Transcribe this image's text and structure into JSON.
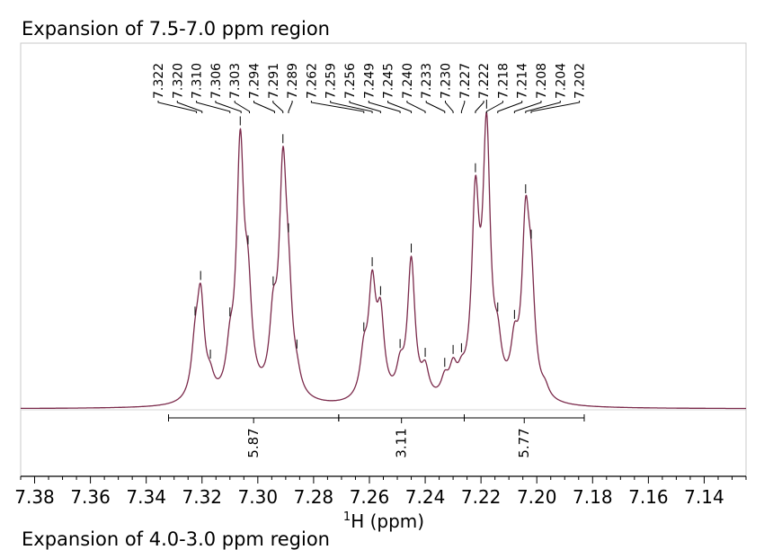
{
  "chart_data": {
    "type": "line",
    "title": "Expansion of 7.5-7.0 ppm region",
    "next_title_fragment": "Expansion of 4.0-3.0 ppm region",
    "xlabel_sup": "1",
    "xlabel_rest": "H (ppm)",
    "xlim": [
      7.385,
      7.125
    ],
    "x_reversed": true,
    "x_ticks": [
      "7.38",
      "7.36",
      "7.34",
      "7.32",
      "7.30",
      "7.28",
      "7.26",
      "7.24",
      "7.22",
      "7.20",
      "7.18",
      "7.16",
      "7.14"
    ],
    "x_tick_values": [
      7.38,
      7.36,
      7.34,
      7.32,
      7.3,
      7.28,
      7.26,
      7.24,
      7.22,
      7.2,
      7.18,
      7.16,
      7.14
    ],
    "line_color": "#7b2a4b",
    "peak_labels": [
      "7.322",
      "7.320",
      "7.310",
      "7.306",
      "7.303",
      "7.294",
      "7.291",
      "7.289",
      "7.262",
      "7.259",
      "7.256",
      "7.249",
      "7.245",
      "7.240",
      "7.233",
      "7.230",
      "7.227",
      "7.222",
      "7.218",
      "7.214",
      "7.208",
      "7.204",
      "7.202"
    ],
    "peaks": [
      {
        "ppm": 7.3225,
        "height": 0.2,
        "width": 0.0016
      },
      {
        "ppm": 7.3205,
        "height": 0.44,
        "width": 0.0016
      },
      {
        "ppm": 7.317,
        "height": 0.07,
        "width": 0.0016
      },
      {
        "ppm": 7.31,
        "height": 0.17,
        "width": 0.0016
      },
      {
        "ppm": 7.3063,
        "height": 1.09,
        "width": 0.0016
      },
      {
        "ppm": 7.3035,
        "height": 0.4,
        "width": 0.0016
      },
      {
        "ppm": 7.2945,
        "height": 0.3,
        "width": 0.0016
      },
      {
        "ppm": 7.291,
        "height": 0.95,
        "width": 0.0016
      },
      {
        "ppm": 7.289,
        "height": 0.34,
        "width": 0.0016
      },
      {
        "ppm": 7.286,
        "height": 0.06,
        "width": 0.0016
      },
      {
        "ppm": 7.262,
        "height": 0.18,
        "width": 0.0016
      },
      {
        "ppm": 7.259,
        "height": 0.48,
        "width": 0.0016
      },
      {
        "ppm": 7.256,
        "height": 0.34,
        "width": 0.0016
      },
      {
        "ppm": 7.249,
        "height": 0.12,
        "width": 0.0016
      },
      {
        "ppm": 7.245,
        "height": 0.62,
        "width": 0.0016
      },
      {
        "ppm": 7.24,
        "height": 0.12,
        "width": 0.0016
      },
      {
        "ppm": 7.233,
        "height": 0.08,
        "width": 0.0016
      },
      {
        "ppm": 7.23,
        "height": 0.12,
        "width": 0.0016
      },
      {
        "ppm": 7.227,
        "height": 0.07,
        "width": 0.0016
      },
      {
        "ppm": 7.222,
        "height": 0.84,
        "width": 0.0016
      },
      {
        "ppm": 7.218,
        "height": 1.15,
        "width": 0.0016
      },
      {
        "ppm": 7.214,
        "height": 0.18,
        "width": 0.0016
      },
      {
        "ppm": 7.208,
        "height": 0.2,
        "width": 0.0016
      },
      {
        "ppm": 7.204,
        "height": 0.72,
        "width": 0.0016
      },
      {
        "ppm": 7.202,
        "height": 0.42,
        "width": 0.0016
      },
      {
        "ppm": 7.197,
        "height": 0.04,
        "width": 0.0016
      }
    ],
    "integrals": [
      {
        "label": "5.87",
        "from": 7.332,
        "to": 7.271
      },
      {
        "label": "3.11",
        "from": 7.271,
        "to": 7.226
      },
      {
        "label": "5.77",
        "from": 7.226,
        "to": 7.183
      }
    ]
  }
}
